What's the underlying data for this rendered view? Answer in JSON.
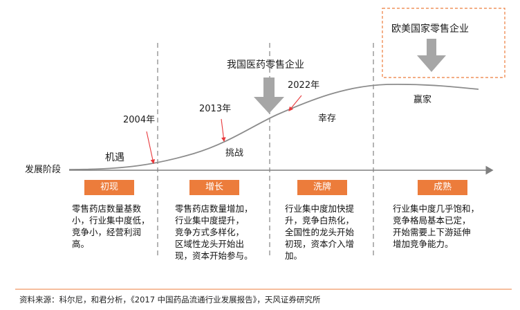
{
  "axis_label": "发展阶段",
  "foreign_label": "欧美国家零售企业",
  "domestic_label": "我国医药零售企业",
  "years": {
    "y2004": "2004年",
    "y2013": "2013年",
    "y2022": "2022年"
  },
  "curve_labels": {
    "jiyu": "机遇",
    "tiaozhan": "挑战",
    "xingcun": "幸存",
    "yingjia": "赢家"
  },
  "stages": [
    {
      "name": "初现",
      "desc": [
        "零售药店数量基数",
        "小，行业集中度低，",
        "竞争小，经营利润",
        "高。"
      ]
    },
    {
      "name": "增长",
      "desc": [
        "零售药店数量增加，",
        "行业集中度提升，",
        "竞争方式多样化，",
        "区域性龙头开始出",
        "现，资本开始参与。"
      ]
    },
    {
      "name": "洗牌",
      "desc": [
        "行业集中度加快提",
        "升，竞争白热化，",
        "全国性的龙头开始",
        "初现，资本介入增",
        "加。"
      ]
    },
    {
      "name": "成熟",
      "desc": [
        "行业集中度几乎饱和，",
        "竞争格局基本已定，",
        "开始需要上下游延伸",
        "增加竞争能力。"
      ]
    }
  ],
  "source": "资料来源：科尔尼，和君分析，《2017 中国药品流通行业发展报告》，天风证券研究所",
  "colors": {
    "orange": "#ec7c3b",
    "arrow_gray": "#a6a6a6",
    "red": "#e8393c",
    "axis": "#7f7f7f"
  }
}
